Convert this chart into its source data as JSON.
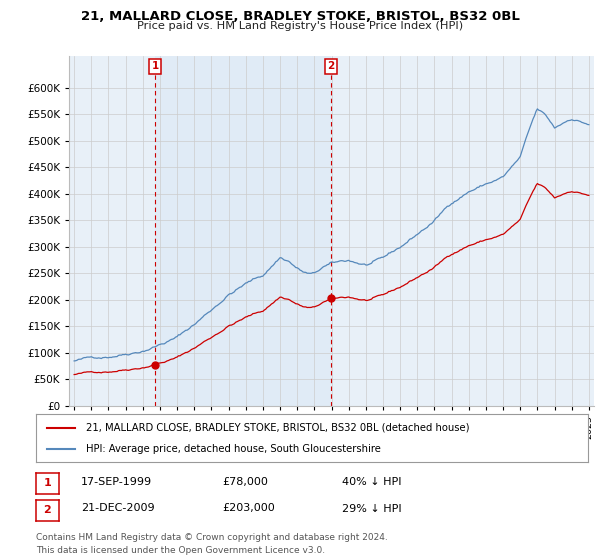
{
  "title": "21, MALLARD CLOSE, BRADLEY STOKE, BRISTOL, BS32 0BL",
  "subtitle": "Price paid vs. HM Land Registry's House Price Index (HPI)",
  "ylim": [
    0,
    660000
  ],
  "yticks": [
    0,
    50000,
    100000,
    150000,
    200000,
    250000,
    300000,
    350000,
    400000,
    450000,
    500000,
    550000,
    600000
  ],
  "xlim_start": 1994.7,
  "xlim_end": 2025.3,
  "sale1_date": 1999.71,
  "sale1_price": 78000,
  "sale1_label": "1",
  "sale2_date": 2009.97,
  "sale2_price": 203000,
  "sale2_label": "2",
  "legend_label_red": "21, MALLARD CLOSE, BRADLEY STOKE, BRISTOL, BS32 0BL (detached house)",
  "legend_label_blue": "HPI: Average price, detached house, South Gloucestershire",
  "table_row1": [
    "1",
    "17-SEP-1999",
    "£78,000",
    "40% ↓ HPI"
  ],
  "table_row2": [
    "2",
    "21-DEC-2009",
    "£203,000",
    "29% ↓ HPI"
  ],
  "footnote": "Contains HM Land Registry data © Crown copyright and database right 2024.\nThis data is licensed under the Open Government Licence v3.0.",
  "red_color": "#cc0000",
  "blue_color": "#5588bb",
  "highlight_color": "#dce8f5",
  "grid_color": "#cccccc",
  "vline_color": "#cc0000",
  "background_color": "#ffffff",
  "plot_bg_color": "#e8f0f8"
}
